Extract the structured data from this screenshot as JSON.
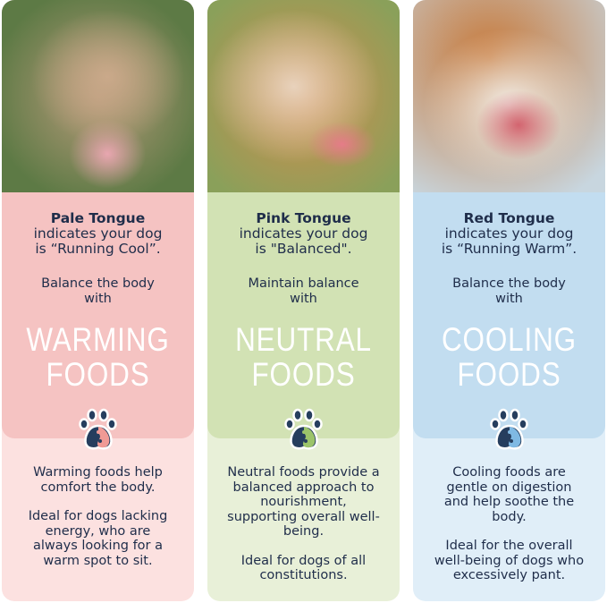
{
  "cards": [
    {
      "title": "Pale Tongue",
      "line1": "indicates your dog",
      "line2": "is “Running Cool”.",
      "balance1": "Balance the body",
      "balance2": "with",
      "food1": "WARMING",
      "food2": "FOODS",
      "p1": "Warming foods help comfort the body.",
      "p2": "Ideal for dogs lacking energy, who are always looking for a warm spot to sit.",
      "colors": {
        "upper": "#f5c3c2",
        "lower": "#fce1e0",
        "accent": "#f09a95"
      }
    },
    {
      "title": "Pink Tongue",
      "line1": "indicates your dog",
      "line2": "is \"Balanced\".",
      "balance1": "Maintain balance",
      "balance2": "with",
      "food1": "NEUTRAL",
      "food2": "FOODS",
      "p1": "Neutral foods provide a balanced approach to nourishment, supporting overall well-being.",
      "p2": "Ideal for dogs of all constitutions.",
      "colors": {
        "upper": "#d2e2b4",
        "lower": "#e8f0d8",
        "accent": "#9cc46a"
      }
    },
    {
      "title": "Red Tongue",
      "line1": "indicates your dog",
      "line2": "is “Running Warm”.",
      "balance1": "Balance the body",
      "balance2": "with",
      "food1": "COOLING",
      "food2": "FOODS",
      "p1": "Cooling foods are gentle on digestion and help soothe the body.",
      "p2": "Ideal for the overall well-being of dogs who excessively pant.",
      "colors": {
        "upper": "#c2ddf0",
        "lower": "#e0eef8",
        "accent": "#7fb9e3"
      }
    }
  ],
  "photos": [
    "pale-tongue-dog-photo",
    "pink-tongue-corgi-photo",
    "red-tongue-terrier-photo"
  ],
  "icon": "paw-yin-yang-icon"
}
